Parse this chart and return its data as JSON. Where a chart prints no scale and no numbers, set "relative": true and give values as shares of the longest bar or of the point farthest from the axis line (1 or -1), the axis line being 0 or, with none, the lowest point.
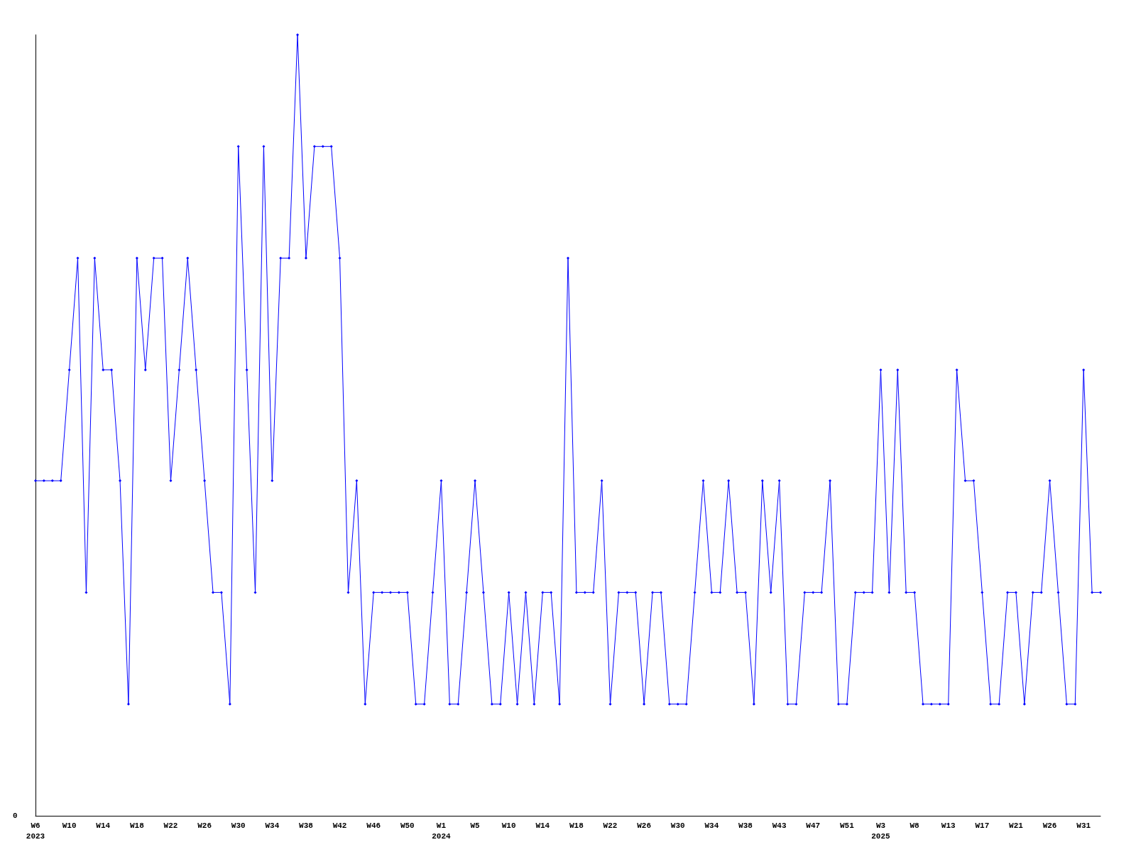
{
  "chart_data": {
    "type": "line",
    "relative": true,
    "color": "#0000ff",
    "marker": "diamond",
    "grid": false,
    "annotations": [
      "0"
    ],
    "categories": [
      "W6\n2023",
      null,
      null,
      null,
      "W10",
      null,
      null,
      null,
      "W14",
      null,
      null,
      null,
      "W18",
      null,
      null,
      null,
      "W22",
      null,
      null,
      null,
      "W26",
      null,
      null,
      null,
      "W30",
      null,
      null,
      null,
      "W34",
      null,
      null,
      null,
      "W38",
      null,
      null,
      null,
      "W42",
      null,
      null,
      null,
      "W46",
      null,
      null,
      null,
      "W50",
      null,
      null,
      null,
      "W1\n2024",
      null,
      null,
      null,
      "W5",
      null,
      null,
      null,
      "W10",
      null,
      null,
      null,
      "W14",
      null,
      null,
      null,
      "W18",
      null,
      null,
      null,
      "W22",
      null,
      null,
      null,
      "W26",
      null,
      null,
      null,
      "W30",
      null,
      null,
      null,
      "W34",
      null,
      null,
      null,
      "W38",
      null,
      null,
      null,
      "W43",
      null,
      null,
      null,
      "W47",
      null,
      null,
      null,
      "W51",
      null,
      null,
      null,
      "W3\n2025",
      null,
      null,
      null,
      "W8",
      null,
      null,
      null,
      "W13",
      null,
      null,
      null,
      "W17",
      null,
      null,
      null,
      "W21",
      null,
      null,
      null,
      "W26",
      null,
      null,
      null,
      "W31",
      null,
      null
    ],
    "values": [
      0.429,
      0.429,
      0.429,
      0.429,
      0.571,
      0.714,
      0.286,
      0.714,
      0.571,
      0.571,
      0.429,
      0.143,
      0.714,
      0.571,
      0.714,
      0.714,
      0.429,
      0.571,
      0.714,
      0.571,
      0.429,
      0.286,
      0.286,
      0.143,
      0.857,
      0.571,
      0.286,
      0.857,
      0.429,
      0.714,
      0.714,
      1,
      0.714,
      0.857,
      0.857,
      0.857,
      0.714,
      0.286,
      0.429,
      0.143,
      0.286,
      0.286,
      0.286,
      0.286,
      0.286,
      0.143,
      0.143,
      0.286,
      0.429,
      0.143,
      0.143,
      0.286,
      0.429,
      0.286,
      0.143,
      0.143,
      0.286,
      0.143,
      0.286,
      0.143,
      0.286,
      0.286,
      0.143,
      0.714,
      0.286,
      0.286,
      0.286,
      0.429,
      0.143,
      0.286,
      0.286,
      0.286,
      0.143,
      0.286,
      0.286,
      0.143,
      0.143,
      0.143,
      0.286,
      0.429,
      0.286,
      0.286,
      0.429,
      0.286,
      0.286,
      0.143,
      0.429,
      0.286,
      0.429,
      0.143,
      0.143,
      0.286,
      0.286,
      0.286,
      0.429,
      0.143,
      0.143,
      0.286,
      0.286,
      0.286,
      0.571,
      0.286,
      0.571,
      0.286,
      0.286,
      0.143,
      0.143,
      0.143,
      0.143,
      0.571,
      0.429,
      0.429,
      0.286,
      0.143,
      0.143,
      0.286,
      0.286,
      0.143,
      0.286,
      0.286,
      0.429,
      0.286,
      0.143,
      0.143,
      0.571,
      0.286,
      0.286
    ]
  }
}
